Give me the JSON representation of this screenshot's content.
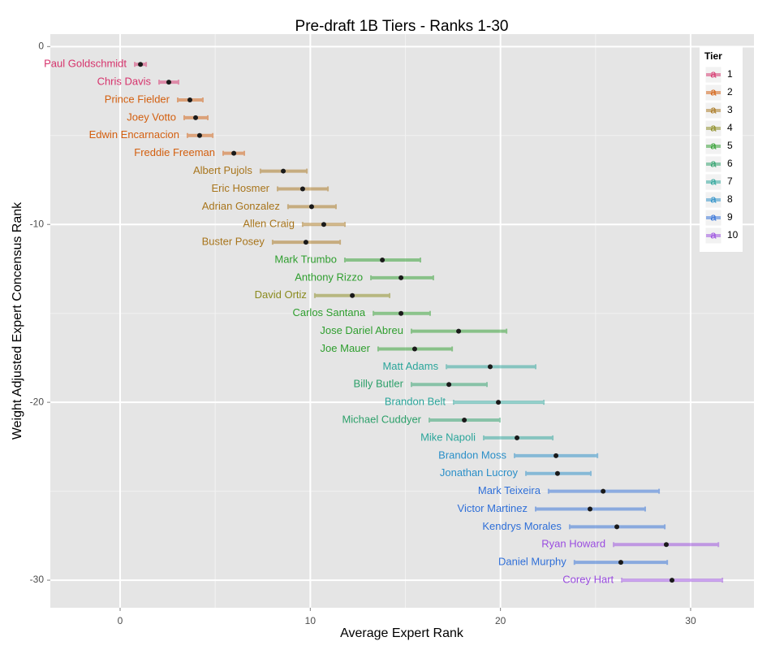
{
  "chart_data": {
    "type": "errorbar_scatter",
    "title": "Pre-draft 1B Tiers - Ranks 1-30",
    "x_label": "Average Expert Rank",
    "y_label": "Weight Adjusted Expert Concensus Rank",
    "xlim": [
      -3.67,
      33.33
    ],
    "ylim": [
      -31.55,
      0.7
    ],
    "xticks": [
      0,
      10,
      20,
      30
    ],
    "yticks": [
      -30,
      -20,
      -10,
      0
    ],
    "grid": true,
    "legend_title": "Tier",
    "legend_key_text": "a",
    "legend_position": "top-right",
    "series": [
      {
        "name": "1",
        "color": "#d6336c",
        "labels": [
          "Paul Goldschmidt",
          "Chris Davis"
        ],
        "x": [
          1.07,
          2.56
        ],
        "xmin": [
          0.77,
          2.05
        ],
        "xmax": [
          1.37,
          3.07
        ],
        "y": [
          -1,
          -2
        ]
      },
      {
        "name": "2",
        "color": "#d35f0f",
        "labels": [
          "Prince Fielder",
          "Joey Votto",
          "Edwin Encarnacion",
          "Freddie Freeman"
        ],
        "x": [
          3.67,
          3.97,
          4.18,
          5.98
        ],
        "xmin": [
          3.03,
          3.37,
          3.54,
          5.42
        ],
        "xmax": [
          4.35,
          4.61,
          4.87,
          6.53
        ],
        "y": [
          -3,
          -4,
          -5,
          -6
        ]
      },
      {
        "name": "3",
        "color": "#a8751c",
        "labels": [
          "Albert Pujols",
          "Eric Hosmer",
          "Adrian Gonzalez",
          "Allen Craig",
          "Buster Posey"
        ],
        "x": [
          8.58,
          9.6,
          10.07,
          10.71,
          9.77
        ],
        "xmin": [
          7.38,
          8.28,
          8.83,
          9.6,
          8.02
        ],
        "xmax": [
          9.82,
          10.93,
          11.35,
          11.82,
          11.57
        ],
        "y": [
          -7,
          -8,
          -9,
          -10,
          -11
        ]
      },
      {
        "name": "4",
        "color": "#8a8a1e",
        "labels": [
          "David Ortiz"
        ],
        "x": [
          12.21
        ],
        "xmin": [
          10.24
        ],
        "xmax": [
          14.17
        ],
        "y": [
          -14
        ]
      },
      {
        "name": "5",
        "color": "#2e9e2e",
        "labels": [
          "Mark Trumbo",
          "Anthony Rizzo",
          "Carlos Santana",
          "Jose Dariel Abreu",
          "Joe Mauer"
        ],
        "x": [
          13.79,
          14.77,
          14.77,
          17.8,
          15.49
        ],
        "xmin": [
          11.82,
          13.19,
          13.32,
          15.32,
          13.57
        ],
        "xmax": [
          15.79,
          16.47,
          16.3,
          20.32,
          17.46
        ],
        "y": [
          -12,
          -13,
          -15,
          -16,
          -17
        ]
      },
      {
        "name": "6",
        "color": "#2da06a",
        "labels": [
          "Billy Butler",
          "Michael Cuddyer"
        ],
        "x": [
          17.29,
          18.1
        ],
        "xmin": [
          15.32,
          16.26
        ],
        "xmax": [
          19.29,
          19.97
        ],
        "y": [
          -19,
          -21
        ]
      },
      {
        "name": "7",
        "color": "#2aa59a",
        "labels": [
          "Matt Adams",
          "Brandon Belt",
          "Mike Napoli"
        ],
        "x": [
          19.46,
          19.89,
          20.87
        ],
        "xmin": [
          17.16,
          17.54,
          19.12
        ],
        "xmax": [
          21.85,
          22.28,
          22.75
        ],
        "y": [
          -18,
          -20,
          -22
        ]
      },
      {
        "name": "8",
        "color": "#2a8fc8",
        "labels": [
          "Brandon Moss",
          "Jonathan Lucroy"
        ],
        "x": [
          22.92,
          23.0
        ],
        "xmin": [
          20.74,
          21.34
        ],
        "xmax": [
          25.1,
          24.75
        ],
        "y": [
          -23,
          -24
        ]
      },
      {
        "name": "9",
        "color": "#2f6fd8",
        "labels": [
          "Mark Teixeira",
          "Victor Martinez",
          "Kendrys Morales",
          "Daniel Murphy"
        ],
        "x": [
          25.4,
          24.71,
          26.12,
          26.33
        ],
        "xmin": [
          22.53,
          21.85,
          23.64,
          23.89
        ],
        "xmax": [
          28.34,
          27.61,
          28.64,
          28.77
        ],
        "y": [
          -25,
          -26,
          -27,
          -29
        ]
      },
      {
        "name": "10",
        "color": "#9a4ce0",
        "labels": [
          "Ryan Howard",
          "Corey Hart"
        ],
        "x": [
          28.72,
          29.02
        ],
        "xmin": [
          25.95,
          26.38
        ],
        "xmax": [
          31.46,
          31.67
        ],
        "y": [
          -28,
          -30
        ]
      }
    ]
  }
}
